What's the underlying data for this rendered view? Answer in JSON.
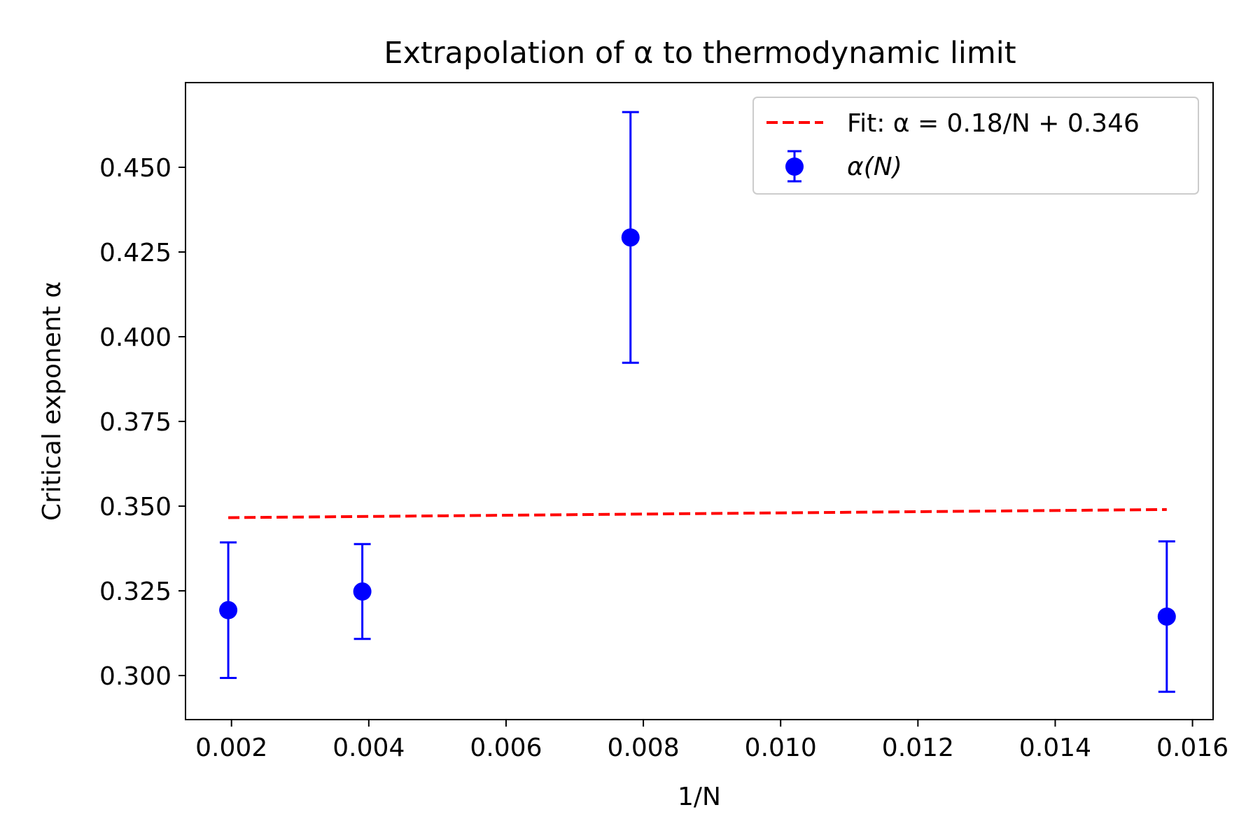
{
  "chart_data": {
    "type": "scatter",
    "title": "Extrapolation of α to thermodynamic limit",
    "xlabel": "1/N",
    "ylabel": "Critical exponent α",
    "xlim": [
      0.00133,
      0.0163
    ],
    "ylim": [
      0.287,
      0.475
    ],
    "xticks": [
      {
        "value": 0.002,
        "label": "0.002"
      },
      {
        "value": 0.004,
        "label": "0.004"
      },
      {
        "value": 0.006,
        "label": "0.006"
      },
      {
        "value": 0.008,
        "label": "0.008"
      },
      {
        "value": 0.01,
        "label": "0.010"
      },
      {
        "value": 0.012,
        "label": "0.012"
      },
      {
        "value": 0.014,
        "label": "0.014"
      },
      {
        "value": 0.016,
        "label": "0.016"
      }
    ],
    "yticks": [
      {
        "value": 0.3,
        "label": "0.300"
      },
      {
        "value": 0.325,
        "label": "0.325"
      },
      {
        "value": 0.35,
        "label": "0.350"
      },
      {
        "value": 0.375,
        "label": "0.375"
      },
      {
        "value": 0.4,
        "label": "0.400"
      },
      {
        "value": 0.425,
        "label": "0.425"
      },
      {
        "value": 0.45,
        "label": "0.450"
      }
    ],
    "grid": false,
    "legend_position": "top-right",
    "series": [
      {
        "name": "α(N)",
        "kind": "errorbar",
        "color": "#0000ff",
        "points": [
          {
            "x": 0.001953,
            "y": 0.3193,
            "yerr": 0.02
          },
          {
            "x": 0.003906,
            "y": 0.3248,
            "yerr": 0.014
          },
          {
            "x": 0.007813,
            "y": 0.4293,
            "yerr": 0.037
          },
          {
            "x": 0.015625,
            "y": 0.3174,
            "yerr": 0.0222
          }
        ]
      },
      {
        "name": "Fit: α = 0.18/N + 0.346",
        "kind": "line",
        "style": "dashed",
        "color": "#ff0000",
        "x": [
          0.001953,
          0.015625
        ],
        "y": [
          0.3466,
          0.349
        ]
      }
    ]
  }
}
